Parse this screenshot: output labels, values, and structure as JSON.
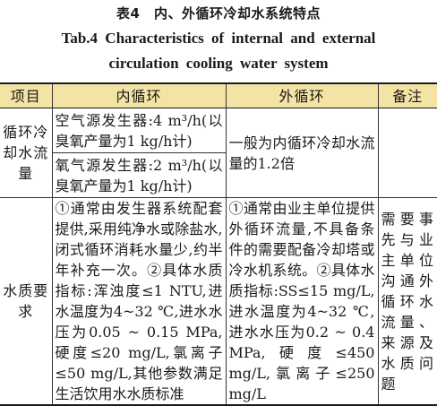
{
  "caption": {
    "cn": "表4　内、外循环冷却水系统特点",
    "en_line1": "Tab.4 Characteristics of internal and external",
    "en_line2": "circulation cooling water system"
  },
  "table": {
    "headers": {
      "item": "项目",
      "inner": "内循环",
      "outer": "外循环",
      "note": "备注"
    },
    "rows": [
      {
        "item": "循环冷却水流量",
        "inner_a": "空气源发生器:4 m³/h(以臭氧产量为1 kg/h计)",
        "inner_b": "氧气源发生器:2 m³/h(以臭氧产量为1 kg/h计)",
        "outer": "一般为内循环冷却水流量的1.2倍",
        "note": ""
      },
      {
        "item": "水质要求",
        "inner": "①通常由发生器系统配套提供,采用纯净水或除盐水,闭式循环消耗水量少,约半年补充一次。②具体水质指标:浑浊度≤1 NTU,进水温度为4~32 ℃,进水水压为0.05 ~ 0.15 MPa,硬度≤20 mg/L,氯离子≤50 mg/L,其他参数满足生活饮用水水质标准",
        "outer": "①通常由业主单位提供外循环流量,不具备条件的需要配备冷却塔或冷水机系统。②具体水质指标:SS≤15 mg/L,进水温度为4~32 ℃,进水水压为0.2 ~ 0.4 MPa,硬度≤450 mg/L,氯离子≤250 mg/L",
        "note": "需要事先与业主单位沟通外循环水流量、来源及水质问题"
      }
    ]
  }
}
